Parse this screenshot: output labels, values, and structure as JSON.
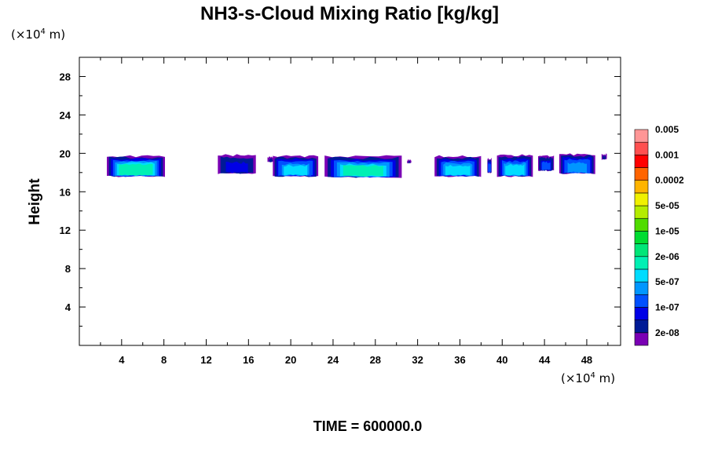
{
  "chart_data": {
    "type": "heatmap",
    "title": "NH3-s-Cloud Mixing Ratio [kg/kg]",
    "ylabel": "Height",
    "y_unit": "(×10",
    "y_unit_exp": "4",
    "y_unit_tail": " m)",
    "x_unit": "(×10",
    "x_unit_exp": "4",
    "x_unit_tail": " m)",
    "xlim": [
      0,
      51.2
    ],
    "ylim": [
      0,
      30
    ],
    "x_ticks": [
      4,
      8,
      12,
      16,
      20,
      24,
      28,
      32,
      36,
      40,
      44,
      48
    ],
    "y_ticks": [
      4,
      8,
      12,
      16,
      20,
      24,
      28
    ],
    "time_label": "TIME = 600000.0",
    "colorbar": {
      "colors": [
        "#7a00b4",
        "#001a96",
        "#0000e6",
        "#0050ff",
        "#0096ff",
        "#00dcff",
        "#00f0b4",
        "#00e678",
        "#00dc32",
        "#50dc00",
        "#b4ec00",
        "#f0f000",
        "#ffb400",
        "#ff6400",
        "#ff0000",
        "#ff5050",
        "#ff9696"
      ],
      "labels": [
        "2e-08",
        "1e-07",
        "5e-07",
        "2e-06",
        "1e-05",
        "5e-05",
        "0.0002",
        "0.001",
        "0.005"
      ]
    },
    "clouds": [
      {
        "x0": 2.6,
        "x1": 8.1,
        "base": 17.6,
        "top": 19.7,
        "peak": 0.58
      },
      {
        "x0": 13.1,
        "x1": 16.7,
        "base": 17.9,
        "top": 19.8,
        "peak": 0.1
      },
      {
        "x0": 17.8,
        "x1": 18.6,
        "base": 19.1,
        "top": 19.6,
        "peak": 0.0
      },
      {
        "x0": 18.3,
        "x1": 22.6,
        "base": 17.6,
        "top": 19.7,
        "peak": 0.45
      },
      {
        "x0": 23.2,
        "x1": 30.5,
        "base": 17.5,
        "top": 19.7,
        "peak": 0.5
      },
      {
        "x0": 31.0,
        "x1": 31.4,
        "base": 19.0,
        "top": 19.3,
        "peak": 0.0
      },
      {
        "x0": 33.6,
        "x1": 38.0,
        "base": 17.6,
        "top": 19.7,
        "peak": 0.42
      },
      {
        "x0": 38.6,
        "x1": 39.0,
        "base": 18.0,
        "top": 19.4,
        "peak": 0.3
      },
      {
        "x0": 39.5,
        "x1": 42.9,
        "base": 17.6,
        "top": 19.8,
        "peak": 0.42
      },
      {
        "x0": 43.4,
        "x1": 44.9,
        "base": 18.2,
        "top": 19.7,
        "peak": 0.2
      },
      {
        "x0": 45.4,
        "x1": 48.8,
        "base": 17.9,
        "top": 19.9,
        "peak": 0.38
      },
      {
        "x0": 49.4,
        "x1": 49.9,
        "base": 19.4,
        "top": 19.9,
        "peak": 0.0
      }
    ]
  }
}
